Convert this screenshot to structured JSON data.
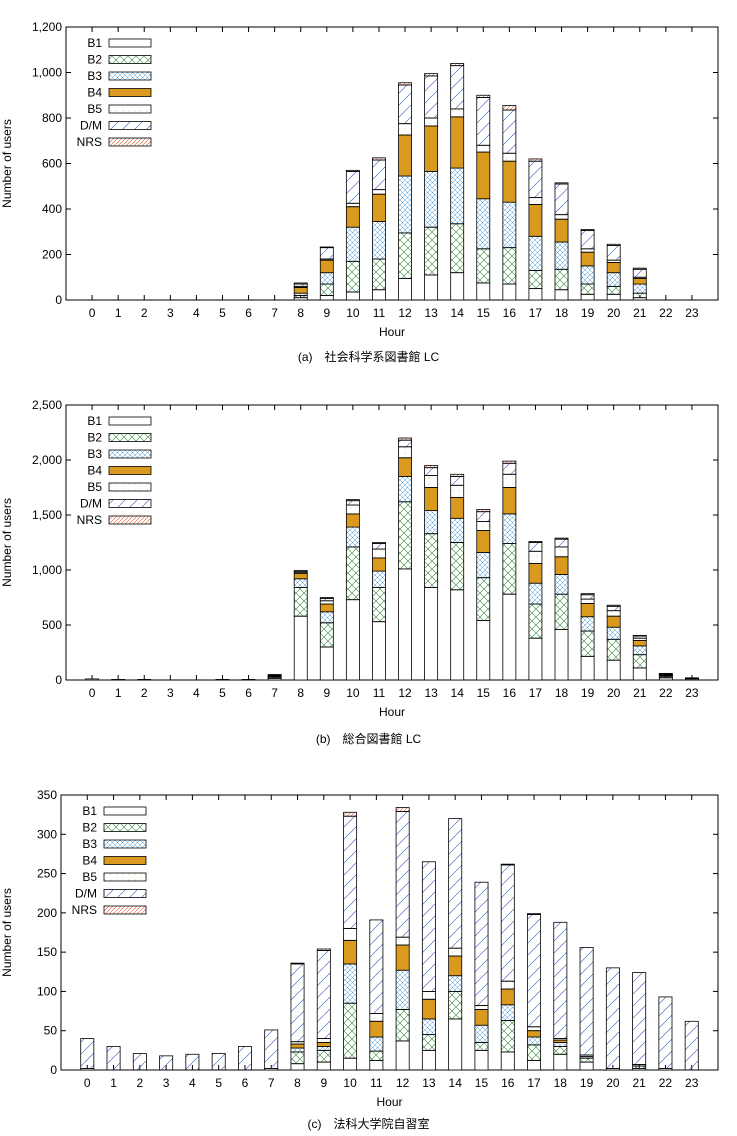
{
  "legend_keys": [
    "B1",
    "B2",
    "B3",
    "B4",
    "B5",
    "D/M",
    "NRS"
  ],
  "pattern_colors": {
    "B1": "#000000",
    "B2": "#2e8b3a",
    "B3": "#4a9ad8",
    "B4": "#d99a1f",
    "B5": "#e8a860",
    "D/M": "#2a58b8",
    "NRS": "#e0562a"
  },
  "chart_data": [
    {
      "type": "bar",
      "stacked": true,
      "caption": "(a)　社会科学系図書館 LC",
      "xlabel": "Hour",
      "ylabel": "Number of users",
      "categories": [
        "0",
        "1",
        "2",
        "3",
        "4",
        "5",
        "6",
        "7",
        "8",
        "9",
        "10",
        "11",
        "12",
        "13",
        "14",
        "15",
        "16",
        "17",
        "18",
        "19",
        "20",
        "21",
        "22",
        "23"
      ],
      "ylim": [
        0,
        1200
      ],
      "yticks": [
        0,
        200,
        400,
        600,
        800,
        1000,
        1200
      ],
      "ytick_labels": [
        "0",
        "200",
        "400",
        "600",
        "800",
        "1,000",
        "1,200"
      ],
      "legend_position": "top-left",
      "series": [
        {
          "name": "B1",
          "values": [
            0,
            0,
            0,
            0,
            0,
            0,
            0,
            0,
            10,
            20,
            35,
            45,
            95,
            110,
            120,
            75,
            70,
            50,
            45,
            25,
            25,
            10,
            0,
            0
          ]
        },
        {
          "name": "B2",
          "values": [
            0,
            0,
            0,
            0,
            0,
            0,
            0,
            0,
            10,
            50,
            135,
            135,
            200,
            210,
            215,
            150,
            160,
            80,
            90,
            45,
            35,
            20,
            0,
            0
          ]
        },
        {
          "name": "B3",
          "values": [
            0,
            0,
            0,
            0,
            0,
            0,
            0,
            0,
            10,
            50,
            150,
            165,
            250,
            245,
            245,
            220,
            200,
            150,
            120,
            80,
            60,
            40,
            0,
            0
          ]
        },
        {
          "name": "B4",
          "values": [
            0,
            0,
            0,
            0,
            0,
            0,
            0,
            0,
            25,
            55,
            90,
            120,
            180,
            200,
            225,
            205,
            180,
            140,
            100,
            60,
            45,
            25,
            0,
            0
          ]
        },
        {
          "name": "B5",
          "values": [
            0,
            0,
            0,
            0,
            0,
            0,
            0,
            0,
            5,
            5,
            15,
            20,
            50,
            35,
            35,
            30,
            35,
            30,
            20,
            15,
            10,
            5,
            0,
            0
          ]
        },
        {
          "name": "D/M",
          "values": [
            0,
            0,
            0,
            0,
            0,
            0,
            0,
            0,
            10,
            50,
            140,
            130,
            170,
            185,
            190,
            210,
            190,
            160,
            135,
            80,
            65,
            35,
            0,
            0
          ]
        },
        {
          "name": "NRS",
          "values": [
            0,
            0,
            0,
            0,
            0,
            0,
            0,
            0,
            5,
            3,
            5,
            10,
            10,
            10,
            10,
            10,
            20,
            10,
            5,
            5,
            5,
            5,
            0,
            0
          ]
        }
      ]
    },
    {
      "type": "bar",
      "stacked": true,
      "caption": "(b)　総合図書館 LC",
      "xlabel": "Hour",
      "ylabel": "Number of users",
      "categories": [
        "0",
        "1",
        "2",
        "3",
        "4",
        "5",
        "6",
        "7",
        "8",
        "9",
        "10",
        "11",
        "12",
        "13",
        "14",
        "15",
        "16",
        "17",
        "18",
        "19",
        "20",
        "21",
        "22",
        "23"
      ],
      "ylim": [
        0,
        2500
      ],
      "yticks": [
        0,
        500,
        1000,
        1500,
        2000,
        2500
      ],
      "ytick_labels": [
        "0",
        "500",
        "1,000",
        "1,500",
        "2,000",
        "2,500"
      ],
      "legend_position": "top-left",
      "series": [
        {
          "name": "B1",
          "values": [
            10,
            5,
            5,
            0,
            0,
            5,
            5,
            15,
            580,
            300,
            730,
            530,
            1010,
            840,
            820,
            540,
            780,
            380,
            460,
            215,
            180,
            110,
            20,
            10
          ]
        },
        {
          "name": "B2",
          "values": [
            0,
            0,
            0,
            0,
            0,
            0,
            0,
            5,
            260,
            220,
            480,
            310,
            610,
            490,
            430,
            390,
            460,
            310,
            320,
            230,
            190,
            120,
            10,
            5
          ]
        },
        {
          "name": "B3",
          "values": [
            0,
            0,
            0,
            0,
            0,
            0,
            0,
            10,
            80,
            100,
            180,
            150,
            230,
            210,
            220,
            230,
            270,
            190,
            180,
            130,
            110,
            80,
            10,
            5
          ]
        },
        {
          "name": "B4",
          "values": [
            0,
            0,
            0,
            0,
            0,
            0,
            0,
            5,
            50,
            70,
            120,
            120,
            170,
            210,
            190,
            200,
            240,
            180,
            160,
            120,
            100,
            50,
            5,
            0
          ]
        },
        {
          "name": "B5",
          "values": [
            0,
            0,
            0,
            0,
            0,
            0,
            0,
            5,
            10,
            30,
            80,
            80,
            100,
            110,
            110,
            80,
            120,
            110,
            90,
            40,
            50,
            20,
            5,
            0
          ]
        },
        {
          "name": "D/M",
          "values": [
            0,
            0,
            0,
            0,
            0,
            0,
            0,
            5,
            10,
            20,
            40,
            50,
            60,
            70,
            80,
            90,
            100,
            80,
            70,
            40,
            40,
            20,
            5,
            0
          ]
        },
        {
          "name": "NRS",
          "values": [
            0,
            0,
            0,
            0,
            0,
            0,
            0,
            5,
            5,
            10,
            10,
            10,
            20,
            20,
            20,
            20,
            20,
            10,
            10,
            10,
            10,
            5,
            5,
            0
          ]
        }
      ]
    },
    {
      "type": "bar",
      "stacked": true,
      "caption": "(c)　法科大学院自習室",
      "xlabel": "Hour",
      "ylabel": "Number of users",
      "categories": [
        "0",
        "1",
        "2",
        "3",
        "4",
        "5",
        "6",
        "7",
        "8",
        "9",
        "10",
        "11",
        "12",
        "13",
        "14",
        "15",
        "16",
        "17",
        "18",
        "19",
        "20",
        "21",
        "22",
        "23"
      ],
      "ylim": [
        0,
        350
      ],
      "yticks": [
        0,
        50,
        100,
        150,
        200,
        250,
        300,
        350
      ],
      "ytick_labels": [
        "0",
        "50",
        "100",
        "150",
        "200",
        "250",
        "300",
        "350"
      ],
      "legend_position": "top-left",
      "series": [
        {
          "name": "B1",
          "values": [
            2,
            0,
            0,
            0,
            0,
            0,
            0,
            2,
            8,
            10,
            15,
            12,
            37,
            25,
            65,
            25,
            23,
            12,
            20,
            10,
            2,
            2,
            2,
            0
          ]
        },
        {
          "name": "B2",
          "values": [
            0,
            0,
            0,
            0,
            0,
            0,
            0,
            0,
            15,
            15,
            70,
            12,
            40,
            20,
            35,
            10,
            40,
            20,
            10,
            5,
            0,
            3,
            0,
            0
          ]
        },
        {
          "name": "B3",
          "values": [
            0,
            0,
            0,
            0,
            0,
            0,
            0,
            0,
            5,
            5,
            50,
            18,
            50,
            20,
            20,
            22,
            20,
            10,
            5,
            2,
            0,
            2,
            0,
            0
          ]
        },
        {
          "name": "B4",
          "values": [
            0,
            0,
            0,
            0,
            0,
            0,
            0,
            0,
            5,
            5,
            30,
            20,
            32,
            25,
            25,
            20,
            20,
            8,
            3,
            0,
            0,
            0,
            0,
            0
          ]
        },
        {
          "name": "B5",
          "values": [
            0,
            0,
            0,
            0,
            0,
            0,
            0,
            0,
            3,
            5,
            15,
            10,
            10,
            10,
            10,
            5,
            10,
            5,
            2,
            2,
            0,
            0,
            0,
            0
          ]
        },
        {
          "name": "D/M",
          "values": [
            38,
            30,
            21,
            18,
            20,
            21,
            30,
            49,
            99,
            112,
            143,
            119,
            160,
            165,
            165,
            157,
            148,
            143,
            148,
            137,
            128,
            117,
            91,
            62
          ]
        },
        {
          "name": "NRS",
          "values": [
            0,
            0,
            0,
            0,
            0,
            0,
            0,
            0,
            1,
            2,
            5,
            0,
            5,
            0,
            0,
            0,
            1,
            1,
            0,
            0,
            0,
            0,
            0,
            0
          ]
        }
      ]
    }
  ]
}
